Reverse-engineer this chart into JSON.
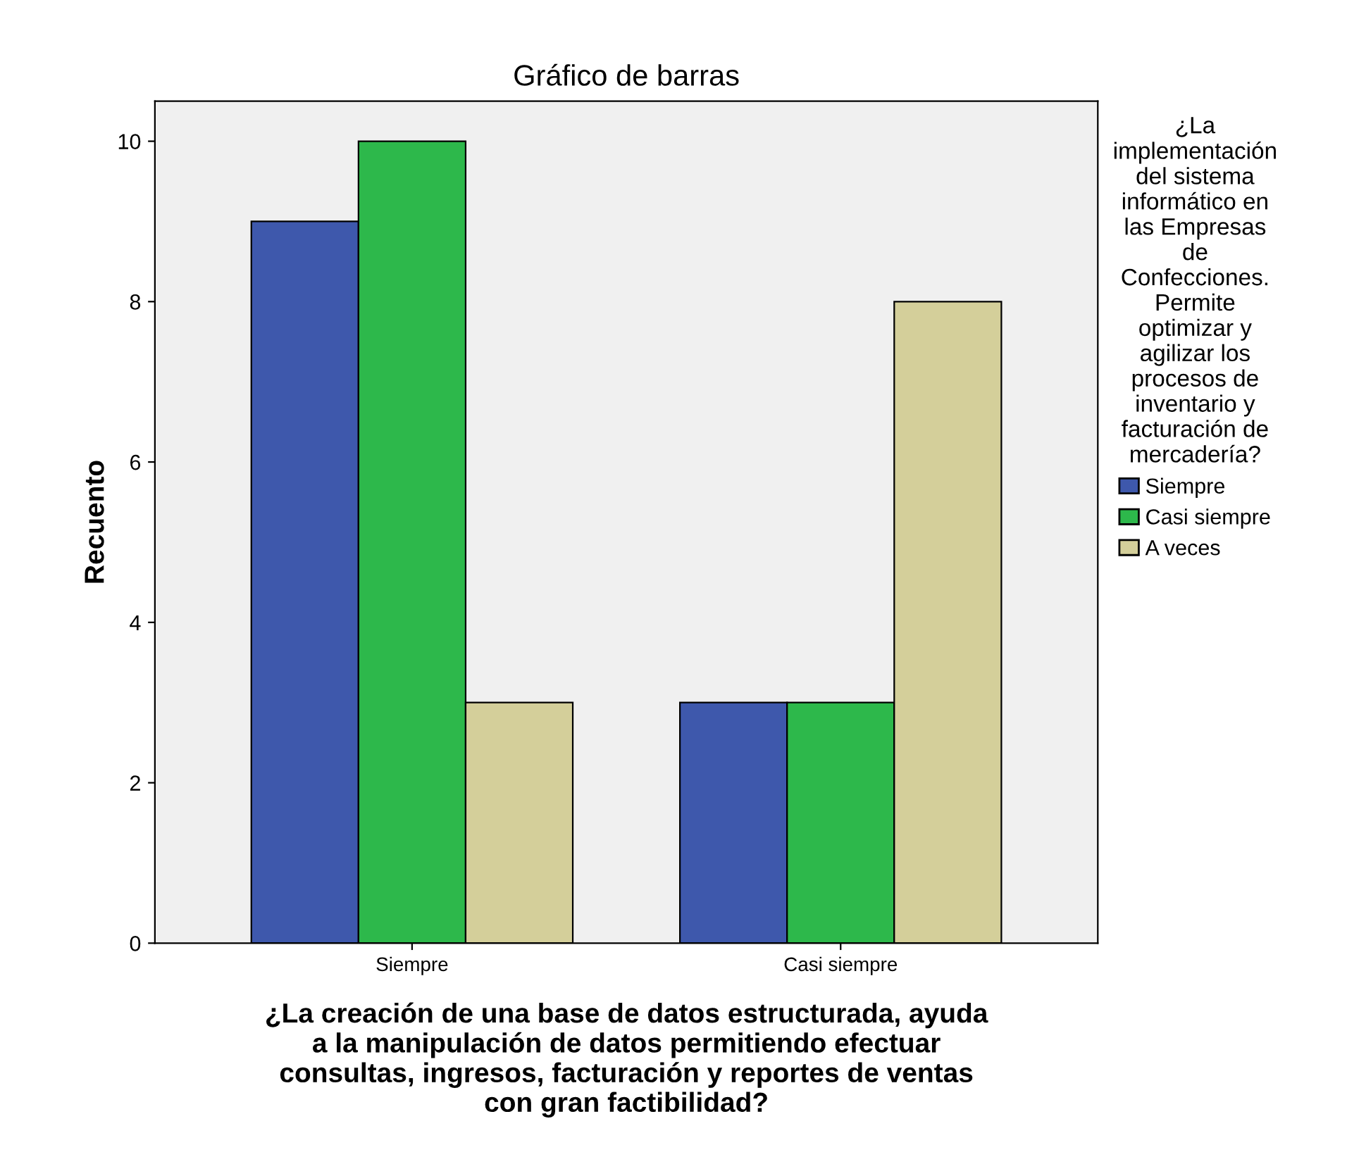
{
  "chart_data": {
    "type": "bar",
    "title": "Gráfico de barras",
    "xlabel": "¿La creación de una base de datos estructurada, ayuda\na la manipulación de datos permitiendo efectuar\nconsultas, ingresos, facturación y reportes de ventas\ncon gran factibilidad?",
    "ylabel": "Recuento",
    "legend_title": "¿La\nimplementación\ndel sistema\ninformático en\nlas Empresas\nde\nConfecciones.\nPermite\noptimizar y\nagilizar los\nprocesos de\ninventario y\nfacturación de\nmercadería?",
    "categories": [
      "Siempre",
      "Casi siempre"
    ],
    "series": [
      {
        "name": "Siempre",
        "color": "#3e58ac",
        "values": [
          9,
          3
        ]
      },
      {
        "name": "Casi siempre",
        "color": "#2db84b",
        "values": [
          10,
          3
        ]
      },
      {
        "name": "A veces",
        "color": "#d4cf9a",
        "values": [
          3,
          8
        ]
      }
    ],
    "ylim": [
      0,
      10.5
    ],
    "yticks": [
      0,
      2,
      4,
      6,
      8,
      10
    ],
    "grid": false,
    "legend": "right"
  }
}
